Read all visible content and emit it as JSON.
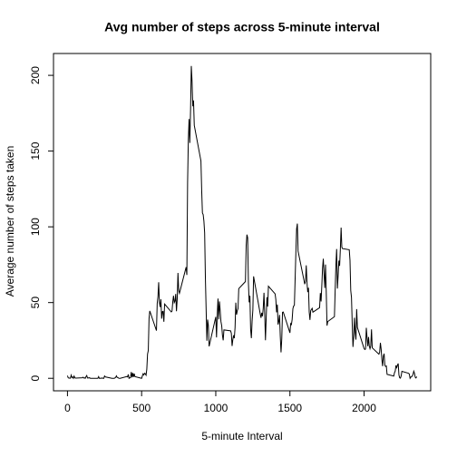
{
  "chart_data": {
    "type": "line",
    "title": "Avg number of steps across 5-minute interval",
    "x_label": "5-minute Interval",
    "y_label": "Average number of steps taken",
    "color": "#000000",
    "xlim": [
      -94.2,
      2449.2
    ],
    "ylim": [
      -8.25,
      214.42
    ],
    "xticks": [
      0,
      500,
      1000,
      1500,
      2000
    ],
    "yticks": [
      0,
      50,
      100,
      150,
      200
    ],
    "x": [
      0,
      5,
      10,
      15,
      20,
      25,
      30,
      35,
      40,
      45,
      50,
      55,
      100,
      105,
      110,
      115,
      120,
      125,
      130,
      135,
      140,
      145,
      150,
      155,
      200,
      205,
      210,
      215,
      220,
      225,
      230,
      235,
      240,
      245,
      250,
      255,
      300,
      305,
      310,
      315,
      320,
      325,
      330,
      335,
      340,
      345,
      350,
      355,
      400,
      405,
      410,
      415,
      420,
      425,
      430,
      435,
      440,
      445,
      450,
      455,
      500,
      505,
      510,
      515,
      520,
      525,
      530,
      535,
      540,
      545,
      550,
      555,
      600,
      605,
      610,
      615,
      620,
      625,
      630,
      635,
      640,
      645,
      650,
      655,
      700,
      705,
      710,
      715,
      720,
      725,
      730,
      735,
      740,
      745,
      750,
      755,
      800,
      805,
      810,
      815,
      820,
      825,
      830,
      835,
      840,
      845,
      850,
      855,
      900,
      905,
      910,
      915,
      920,
      925,
      930,
      935,
      940,
      945,
      950,
      955,
      1000,
      1005,
      1010,
      1015,
      1020,
      1025,
      1030,
      1035,
      1040,
      1045,
      1050,
      1055,
      1100,
      1105,
      1110,
      1115,
      1120,
      1125,
      1130,
      1135,
      1140,
      1145,
      1150,
      1155,
      1200,
      1205,
      1210,
      1215,
      1220,
      1225,
      1230,
      1235,
      1240,
      1245,
      1250,
      1255,
      1300,
      1305,
      1310,
      1315,
      1320,
      1325,
      1330,
      1335,
      1340,
      1345,
      1350,
      1355,
      1400,
      1405,
      1410,
      1415,
      1420,
      1425,
      1430,
      1435,
      1440,
      1445,
      1450,
      1455,
      1500,
      1505,
      1510,
      1515,
      1520,
      1525,
      1530,
      1535,
      1540,
      1545,
      1550,
      1555,
      1600,
      1605,
      1610,
      1615,
      1620,
      1625,
      1630,
      1635,
      1640,
      1645,
      1650,
      1655,
      1700,
      1705,
      1710,
      1715,
      1720,
      1725,
      1730,
      1735,
      1740,
      1745,
      1750,
      1755,
      1800,
      1805,
      1810,
      1815,
      1820,
      1825,
      1830,
      1835,
      1840,
      1845,
      1850,
      1855,
      1900,
      1905,
      1910,
      1915,
      1920,
      1925,
      1930,
      1935,
      1940,
      1945,
      1950,
      1955,
      2000,
      2005,
      2010,
      2015,
      2020,
      2025,
      2030,
      2035,
      2040,
      2045,
      2050,
      2055,
      2100,
      2105,
      2110,
      2115,
      2120,
      2125,
      2130,
      2135,
      2140,
      2145,
      2150,
      2155,
      2200,
      2205,
      2210,
      2215,
      2220,
      2225,
      2230,
      2235,
      2240,
      2245,
      2250,
      2255,
      2300,
      2305,
      2310,
      2315,
      2320,
      2325,
      2330,
      2335,
      2340,
      2345,
      2350,
      2355
    ],
    "values": [
      1.72,
      0.34,
      0.13,
      0.15,
      0.08,
      2.09,
      0.53,
      0.87,
      0,
      1.47,
      0.3,
      0.13,
      0.32,
      0.68,
      0.15,
      0.34,
      0,
      1.11,
      1.83,
      0.17,
      0.17,
      0.38,
      0.26,
      0,
      0,
      0,
      1.13,
      0,
      0,
      0.13,
      0,
      0.23,
      0,
      0,
      1.55,
      0.94,
      0,
      0,
      0,
      0,
      0.21,
      0.62,
      1.62,
      0.58,
      0.49,
      0.08,
      0,
      0,
      1.19,
      0.94,
      2.57,
      0,
      0.34,
      0.36,
      4.11,
      0.66,
      3.49,
      0.83,
      3.11,
      1.11,
      0,
      1.57,
      3.0,
      2.25,
      3.32,
      2.96,
      2.09,
      6.06,
      16.02,
      18.34,
      39.45,
      44.49,
      31.49,
      49.26,
      53.77,
      63.45,
      49.96,
      47.08,
      52.15,
      39.34,
      44.02,
      44.17,
      37.36,
      49.04,
      43.81,
      44.38,
      50.51,
      54.51,
      49.92,
      50.98,
      55.68,
      44.32,
      52.26,
      69.55,
      57.85,
      56.15,
      73.38,
      68.21,
      129.43,
      157.53,
      171.15,
      155.4,
      177.3,
      206.17,
      195.92,
      179.57,
      183.4,
      167.02,
      143.45,
      124.04,
      109.11,
      108.11,
      103.72,
      95.97,
      66.21,
      45.23,
      24.79,
      38.75,
      34.98,
      21.06,
      40.57,
      26.98,
      42.42,
      52.66,
      38.92,
      50.79,
      44.28,
      37.42,
      34.7,
      28.34,
      25.09,
      31.94,
      31.36,
      29.68,
      21.32,
      25.55,
      28.38,
      26.47,
      33.43,
      49.98,
      42.04,
      44.6,
      46.04,
      59.19,
      63.87,
      87.7,
      94.85,
      92.77,
      63.4,
      50.17,
      54.47,
      32.42,
      26.53,
      37.74,
      45.06,
      67.28,
      42.34,
      39.88,
      43.26,
      40.98,
      46.25,
      56.43,
      42.75,
      25.13,
      39.96,
      53.55,
      47.32,
      60.81,
      55.75,
      51.96,
      43.58,
      48.7,
      35.47,
      37.55,
      41.85,
      27.51,
      17.11,
      26.08,
      43.62,
      43.77,
      30.02,
      36.08,
      35.49,
      38.85,
      45.96,
      47.75,
      48.13,
      65.32,
      82.91,
      98.66,
      102.11,
      83.96,
      62.13,
      64.13,
      74.55,
      63.17,
      56.91,
      59.77,
      43.87,
      38.57,
      44.66,
      45.45,
      46.21,
      43.68,
      46.62,
      56.3,
      50.72,
      61.23,
      72.72,
      78.94,
      68.94,
      59.66,
      75.09,
      56.51,
      34.77,
      37.45,
      40.68,
      58.02,
      74.7,
      85.32,
      59.26,
      67.77,
      77.7,
      74.25,
      85.34,
      99.45,
      86.58,
      85.6,
      84.87,
      77.83,
      58.04,
      53.36,
      36.32,
      20.72,
      27.4,
      40.02,
      30.21,
      25.55,
      45.66,
      33.53,
      19.62,
      19.02,
      19.34,
      33.34,
      26.81,
      21.17,
      27.3,
      21.34,
      19.55,
      21.32,
      32.3,
      20.15,
      15.94,
      17.23,
      23.45,
      19.25,
      12.45,
      8.02,
      14.66,
      16.3,
      8.68,
      7.79,
      8.13,
      2.62,
      1.45,
      3.68,
      4.81,
      8.51,
      7.08,
      8.7,
      9.75,
      2.21,
      0.32,
      0.11,
      1.6,
      4.6,
      3.3,
      2.85,
      0,
      0.83,
      0.96,
      1.58,
      2.6,
      4.7,
      3.3,
      0.64,
      0.23,
      1.08
    ]
  }
}
